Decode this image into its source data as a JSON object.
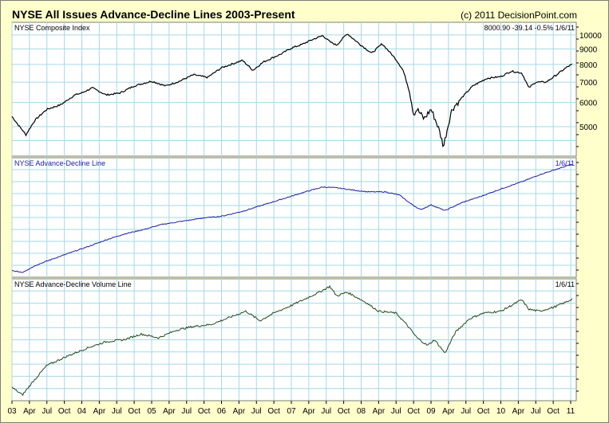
{
  "header": {
    "title": "NYSE All Issues Advance-Decline Lines 2003-Present",
    "credit": "(c) 2011 DecisionPoint.com"
  },
  "colors": {
    "background": "#ffffcc",
    "plot_bg": "#ffffff",
    "grid": "#a6d8e6",
    "composite": "#000000",
    "ad_line": "#1c1ca8",
    "ad_volume": "#1d4a1d"
  },
  "chart_data": [
    {
      "type": "line",
      "title": "NYSE Composite Index",
      "readout": "8000.90   -39.14   -0.5%   1/6/11",
      "yscale": "log",
      "ylim": [
        4000,
        11000
      ],
      "yticks": [
        10000,
        9000,
        8000,
        7000,
        6000,
        5000
      ],
      "grid": true,
      "series": [
        {
          "x": [
            2003.0,
            2003.08,
            2003.2,
            2003.33,
            2003.5,
            2003.7,
            2003.9,
            2004.0,
            2004.15,
            2004.35,
            2004.55,
            2004.75,
            2005.0,
            2005.2,
            2005.4,
            2005.6,
            2005.8,
            2006.0,
            2006.3,
            2006.45,
            2006.6,
            2006.85,
            2007.0,
            2007.15,
            2007.3,
            2007.45,
            2007.55,
            2007.65,
            2007.8,
            2007.9,
            2008.0,
            2008.15,
            2008.3,
            2008.5,
            2008.6,
            2008.7,
            2008.75,
            2008.8,
            2008.9,
            2009.0,
            2009.1,
            2009.18,
            2009.3,
            2009.45,
            2009.6,
            2009.8,
            2010.0,
            2010.15,
            2010.3,
            2010.4,
            2010.5,
            2010.65,
            2010.8,
            2010.95,
            2011.02
          ],
          "values": [
            5400,
            5100,
            4700,
            5250,
            5700,
            5900,
            6350,
            6450,
            6700,
            6350,
            6450,
            6800,
            7050,
            6800,
            7050,
            7400,
            7250,
            7800,
            8250,
            7650,
            8150,
            8650,
            9050,
            9300,
            9650,
            9950,
            9500,
            9250,
            10100,
            9650,
            9250,
            8700,
            9350,
            8300,
            7650,
            6400,
            5500,
            5700,
            5300,
            5700,
            5000,
            4300,
            5700,
            6250,
            6800,
            7200,
            7300,
            7600,
            7500,
            6700,
            7000,
            7000,
            7400,
            7850,
            8000
          ]
        }
      ]
    },
    {
      "type": "line",
      "title": "NYSE Advance-Decline Line",
      "date_label": "1/6/11",
      "grid": true,
      "series": [
        {
          "x": [
            2003.0,
            2003.15,
            2003.35,
            2003.6,
            2003.9,
            2004.1,
            2004.35,
            2004.6,
            2004.9,
            2005.15,
            2005.45,
            2005.75,
            2006.0,
            2006.3,
            2006.6,
            2006.9,
            2007.2,
            2007.45,
            2007.65,
            2007.9,
            2008.1,
            2008.35,
            2008.55,
            2008.7,
            2008.85,
            2009.0,
            2009.2,
            2009.45,
            2009.7,
            2009.95,
            2010.15,
            2010.35,
            2010.55,
            2010.8,
            2011.02
          ],
          "values": [
            7,
            5,
            14,
            22,
            31,
            37,
            45,
            52,
            58,
            64,
            68,
            72,
            74,
            80,
            88,
            96,
            104,
            110,
            109,
            106,
            104,
            104,
            100,
            90,
            82,
            88,
            81,
            91,
            98,
            106,
            112,
            118,
            125,
            132,
            138
          ]
        }
      ]
    },
    {
      "type": "line",
      "title": "NYSE Advance-Decline Volume Line",
      "date_label": "1/6/11",
      "grid": true,
      "series": [
        {
          "x": [
            2003.0,
            2003.15,
            2003.3,
            2003.5,
            2003.8,
            2004.1,
            2004.35,
            2004.6,
            2004.85,
            2005.1,
            2005.35,
            2005.6,
            2005.85,
            2006.1,
            2006.35,
            2006.55,
            2006.75,
            2007.0,
            2007.2,
            2007.4,
            2007.55,
            2007.65,
            2007.8,
            2008.05,
            2008.25,
            2008.5,
            2008.65,
            2008.8,
            2008.95,
            2009.05,
            2009.2,
            2009.35,
            2009.55,
            2009.75,
            2010.0,
            2010.15,
            2010.3,
            2010.4,
            2010.55,
            2010.75,
            2010.95,
            2011.02
          ],
          "values": [
            32,
            24,
            38,
            55,
            65,
            74,
            80,
            82,
            88,
            84,
            92,
            96,
            98,
            105,
            112,
            102,
            110,
            118,
            125,
            132,
            138,
            128,
            132,
            122,
            112,
            110,
            98,
            84,
            76,
            82,
            68,
            90,
            104,
            110,
            112,
            118,
            124,
            114,
            112,
            116,
            122,
            125
          ]
        }
      ]
    }
  ],
  "xaxis": {
    "ticks": [
      {
        "label": "03",
        "x": 2003.0
      },
      {
        "label": "Apr",
        "x": 2003.25
      },
      {
        "label": "Jul",
        "x": 2003.5
      },
      {
        "label": "Oct",
        "x": 2003.75
      },
      {
        "label": "04",
        "x": 2004.0
      },
      {
        "label": "Apr",
        "x": 2004.25
      },
      {
        "label": "Jul",
        "x": 2004.5
      },
      {
        "label": "Oct",
        "x": 2004.75
      },
      {
        "label": "05",
        "x": 2005.0
      },
      {
        "label": "Apr",
        "x": 2005.25
      },
      {
        "label": "Jul",
        "x": 2005.5
      },
      {
        "label": "Oct",
        "x": 2005.75
      },
      {
        "label": "06",
        "x": 2006.0
      },
      {
        "label": "Apr",
        "x": 2006.25
      },
      {
        "label": "Jul",
        "x": 2006.5
      },
      {
        "label": "Oct",
        "x": 2006.75
      },
      {
        "label": "07",
        "x": 2007.0
      },
      {
        "label": "Apr",
        "x": 2007.25
      },
      {
        "label": "Jul",
        "x": 2007.5
      },
      {
        "label": "Oct",
        "x": 2007.75
      },
      {
        "label": "08",
        "x": 2008.0
      },
      {
        "label": "Apr",
        "x": 2008.25
      },
      {
        "label": "Jul",
        "x": 2008.5
      },
      {
        "label": "Oct",
        "x": 2008.75
      },
      {
        "label": "09",
        "x": 2009.0
      },
      {
        "label": "Apr",
        "x": 2009.25
      },
      {
        "label": "Jul",
        "x": 2009.5
      },
      {
        "label": "Oct",
        "x": 2009.75
      },
      {
        "label": "10",
        "x": 2010.0
      },
      {
        "label": "Apr",
        "x": 2010.25
      },
      {
        "label": "Jul",
        "x": 2010.5
      },
      {
        "label": "Oct",
        "x": 2010.75
      },
      {
        "label": "11",
        "x": 2011.0
      }
    ]
  }
}
